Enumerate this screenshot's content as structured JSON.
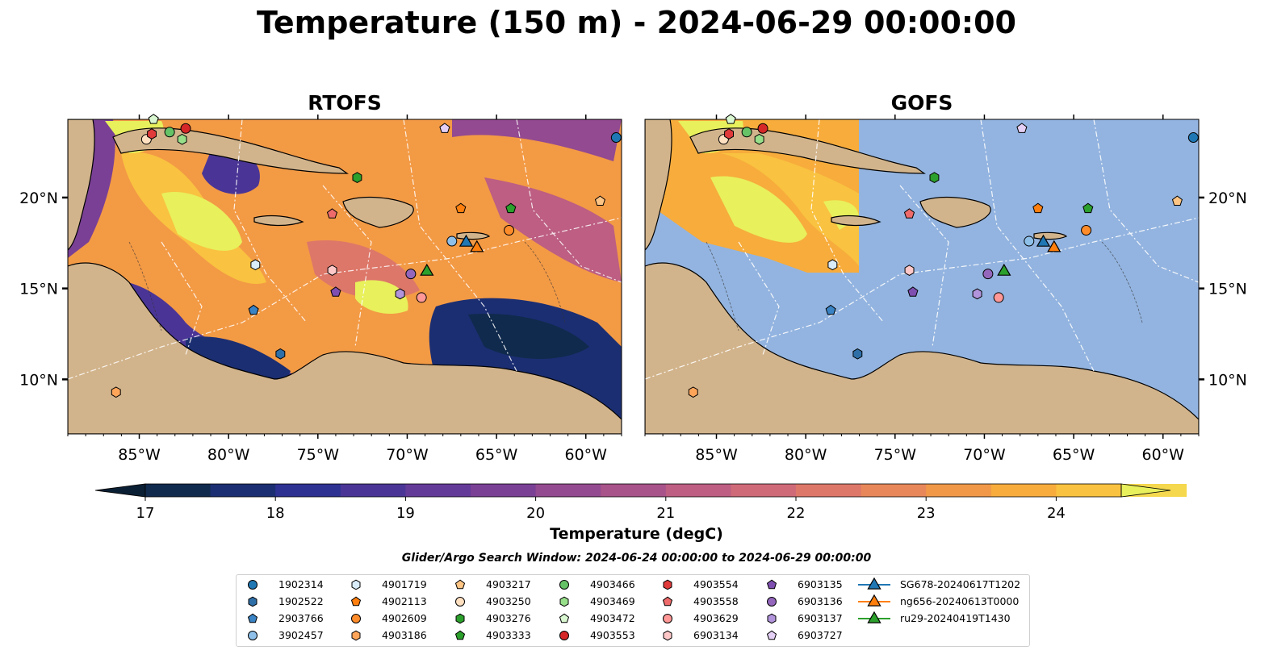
{
  "figure": {
    "title": "Temperature (150 m) - 2024-06-29 00:00:00",
    "search_window": "Glider/Argo Search Window: 2024-06-24 00:00:00 to 2024-06-29 00:00:00"
  },
  "panels": [
    {
      "title": "RTOFS"
    },
    {
      "title": "GOFS"
    }
  ],
  "axes": {
    "lon_ticks": [
      "85°W",
      "80°W",
      "75°W",
      "70°W",
      "65°W",
      "60°W"
    ],
    "lon_values": [
      -85,
      -80,
      -75,
      -70,
      -65,
      -60
    ],
    "lat_ticks": [
      "10°N",
      "15°N",
      "20°N"
    ],
    "lat_values": [
      10,
      15,
      20
    ],
    "extent": {
      "lon_min": -89,
      "lon_max": -58,
      "lat_min": 7,
      "lat_max": 24.3
    }
  },
  "colorbar": {
    "label": "Temperature (degC)",
    "ticks": [
      "17",
      "18",
      "19",
      "20",
      "21",
      "22",
      "23",
      "24"
    ],
    "tick_values": [
      17,
      18,
      19,
      20,
      21,
      22,
      23,
      24
    ],
    "min": 16.5,
    "max": 24.5,
    "step": 0.5,
    "colors": [
      "#0a1f33",
      "#102a4d",
      "#1b2e72",
      "#2d3192",
      "#4a3596",
      "#643a98",
      "#7a4095",
      "#934a90",
      "#a85389",
      "#bd5e82",
      "#cf6a78",
      "#dd7769",
      "#e8875a",
      "#f09848",
      "#f7ac3c",
      "#f9c240",
      "#f5d84d",
      "#e8f05c"
    ]
  },
  "colors": {
    "land": "#d2b48c",
    "ocean_missing": "#93b4e0",
    "coast": "#000000",
    "eez": "#ffffff"
  },
  "markers": [
    {
      "name": "1902314",
      "shape": "circle",
      "color": "#1f77b4",
      "lon": -58.3,
      "lat": 23.3
    },
    {
      "name": "1902522",
      "shape": "hexagon",
      "color": "#2f6fa8",
      "lon": -77.1,
      "lat": 11.4
    },
    {
      "name": "2903766",
      "shape": "pentagon",
      "color": "#3a83c4",
      "lon": -78.6,
      "lat": 13.8
    },
    {
      "name": "3902457",
      "shape": "circle",
      "color": "#8ec0ea",
      "lon": -67.5,
      "lat": 17.6
    },
    {
      "name": "4901719",
      "shape": "hexagon",
      "color": "#d8ecfa",
      "lon": -78.5,
      "lat": 16.3
    },
    {
      "name": "4902113",
      "shape": "pentagon",
      "color": "#ff7f0e",
      "lon": -67.0,
      "lat": 19.4
    },
    {
      "name": "4902609",
      "shape": "circle",
      "color": "#ff8c2a",
      "lon": -64.3,
      "lat": 18.2
    },
    {
      "name": "4903186",
      "shape": "hexagon",
      "color": "#ffa55a",
      "lon": -86.3,
      "lat": 9.3
    },
    {
      "name": "4903217",
      "shape": "pentagon",
      "color": "#ffc585",
      "lon": -59.2,
      "lat": 19.8
    },
    {
      "name": "4903250",
      "shape": "circle",
      "color": "#ffe0c0",
      "lon": -84.6,
      "lat": 23.2
    },
    {
      "name": "4903276",
      "shape": "hexagon",
      "color": "#2ca02c",
      "lon": -72.8,
      "lat": 21.1
    },
    {
      "name": "4903333",
      "shape": "pentagon",
      "color": "#2ca02c",
      "lon": -64.2,
      "lat": 19.4
    },
    {
      "name": "4903466",
      "shape": "circle",
      "color": "#66c266",
      "lon": -83.3,
      "lat": 23.6
    },
    {
      "name": "4903469",
      "shape": "hexagon",
      "color": "#98df8a",
      "lon": -82.6,
      "lat": 23.2
    },
    {
      "name": "4903472",
      "shape": "pentagon",
      "color": "#d9f7d0",
      "lon": -84.2,
      "lat": 24.3
    },
    {
      "name": "4903553",
      "shape": "circle",
      "color": "#d62728",
      "lon": -82.4,
      "lat": 23.8
    },
    {
      "name": "4903554",
      "shape": "hexagon",
      "color": "#e03a3a",
      "lon": -84.3,
      "lat": 23.5
    },
    {
      "name": "4903558",
      "shape": "pentagon",
      "color": "#ef6b6b",
      "lon": -74.2,
      "lat": 19.1
    },
    {
      "name": "4903629",
      "shape": "circle",
      "color": "#ff9896",
      "lon": -69.2,
      "lat": 14.5
    },
    {
      "name": "6903134",
      "shape": "hexagon",
      "color": "#ffc8c8",
      "lon": -74.2,
      "lat": 16.0
    },
    {
      "name": "6903135",
      "shape": "pentagon",
      "color": "#7e4fb0",
      "lon": -74.0,
      "lat": 14.8
    },
    {
      "name": "6903136",
      "shape": "circle",
      "color": "#9467bd",
      "lon": -69.8,
      "lat": 15.8
    },
    {
      "name": "6903137",
      "shape": "hexagon",
      "color": "#b294dc",
      "lon": -70.4,
      "lat": 14.7
    },
    {
      "name": "6903727",
      "shape": "pentagon",
      "color": "#e4cff5",
      "lon": -67.9,
      "lat": 23.8
    }
  ],
  "tracks": [
    {
      "name": "SG678-20240617T1202",
      "color": "#1f77b4",
      "lon": -66.7,
      "lat": 17.6
    },
    {
      "name": "ng656-20240613T0000",
      "color": "#ff7f0e",
      "lon": -66.1,
      "lat": 17.3
    },
    {
      "name": "ru29-20240419T1430",
      "color": "#2ca02c",
      "lon": -68.9,
      "lat": 16.0
    }
  ]
}
